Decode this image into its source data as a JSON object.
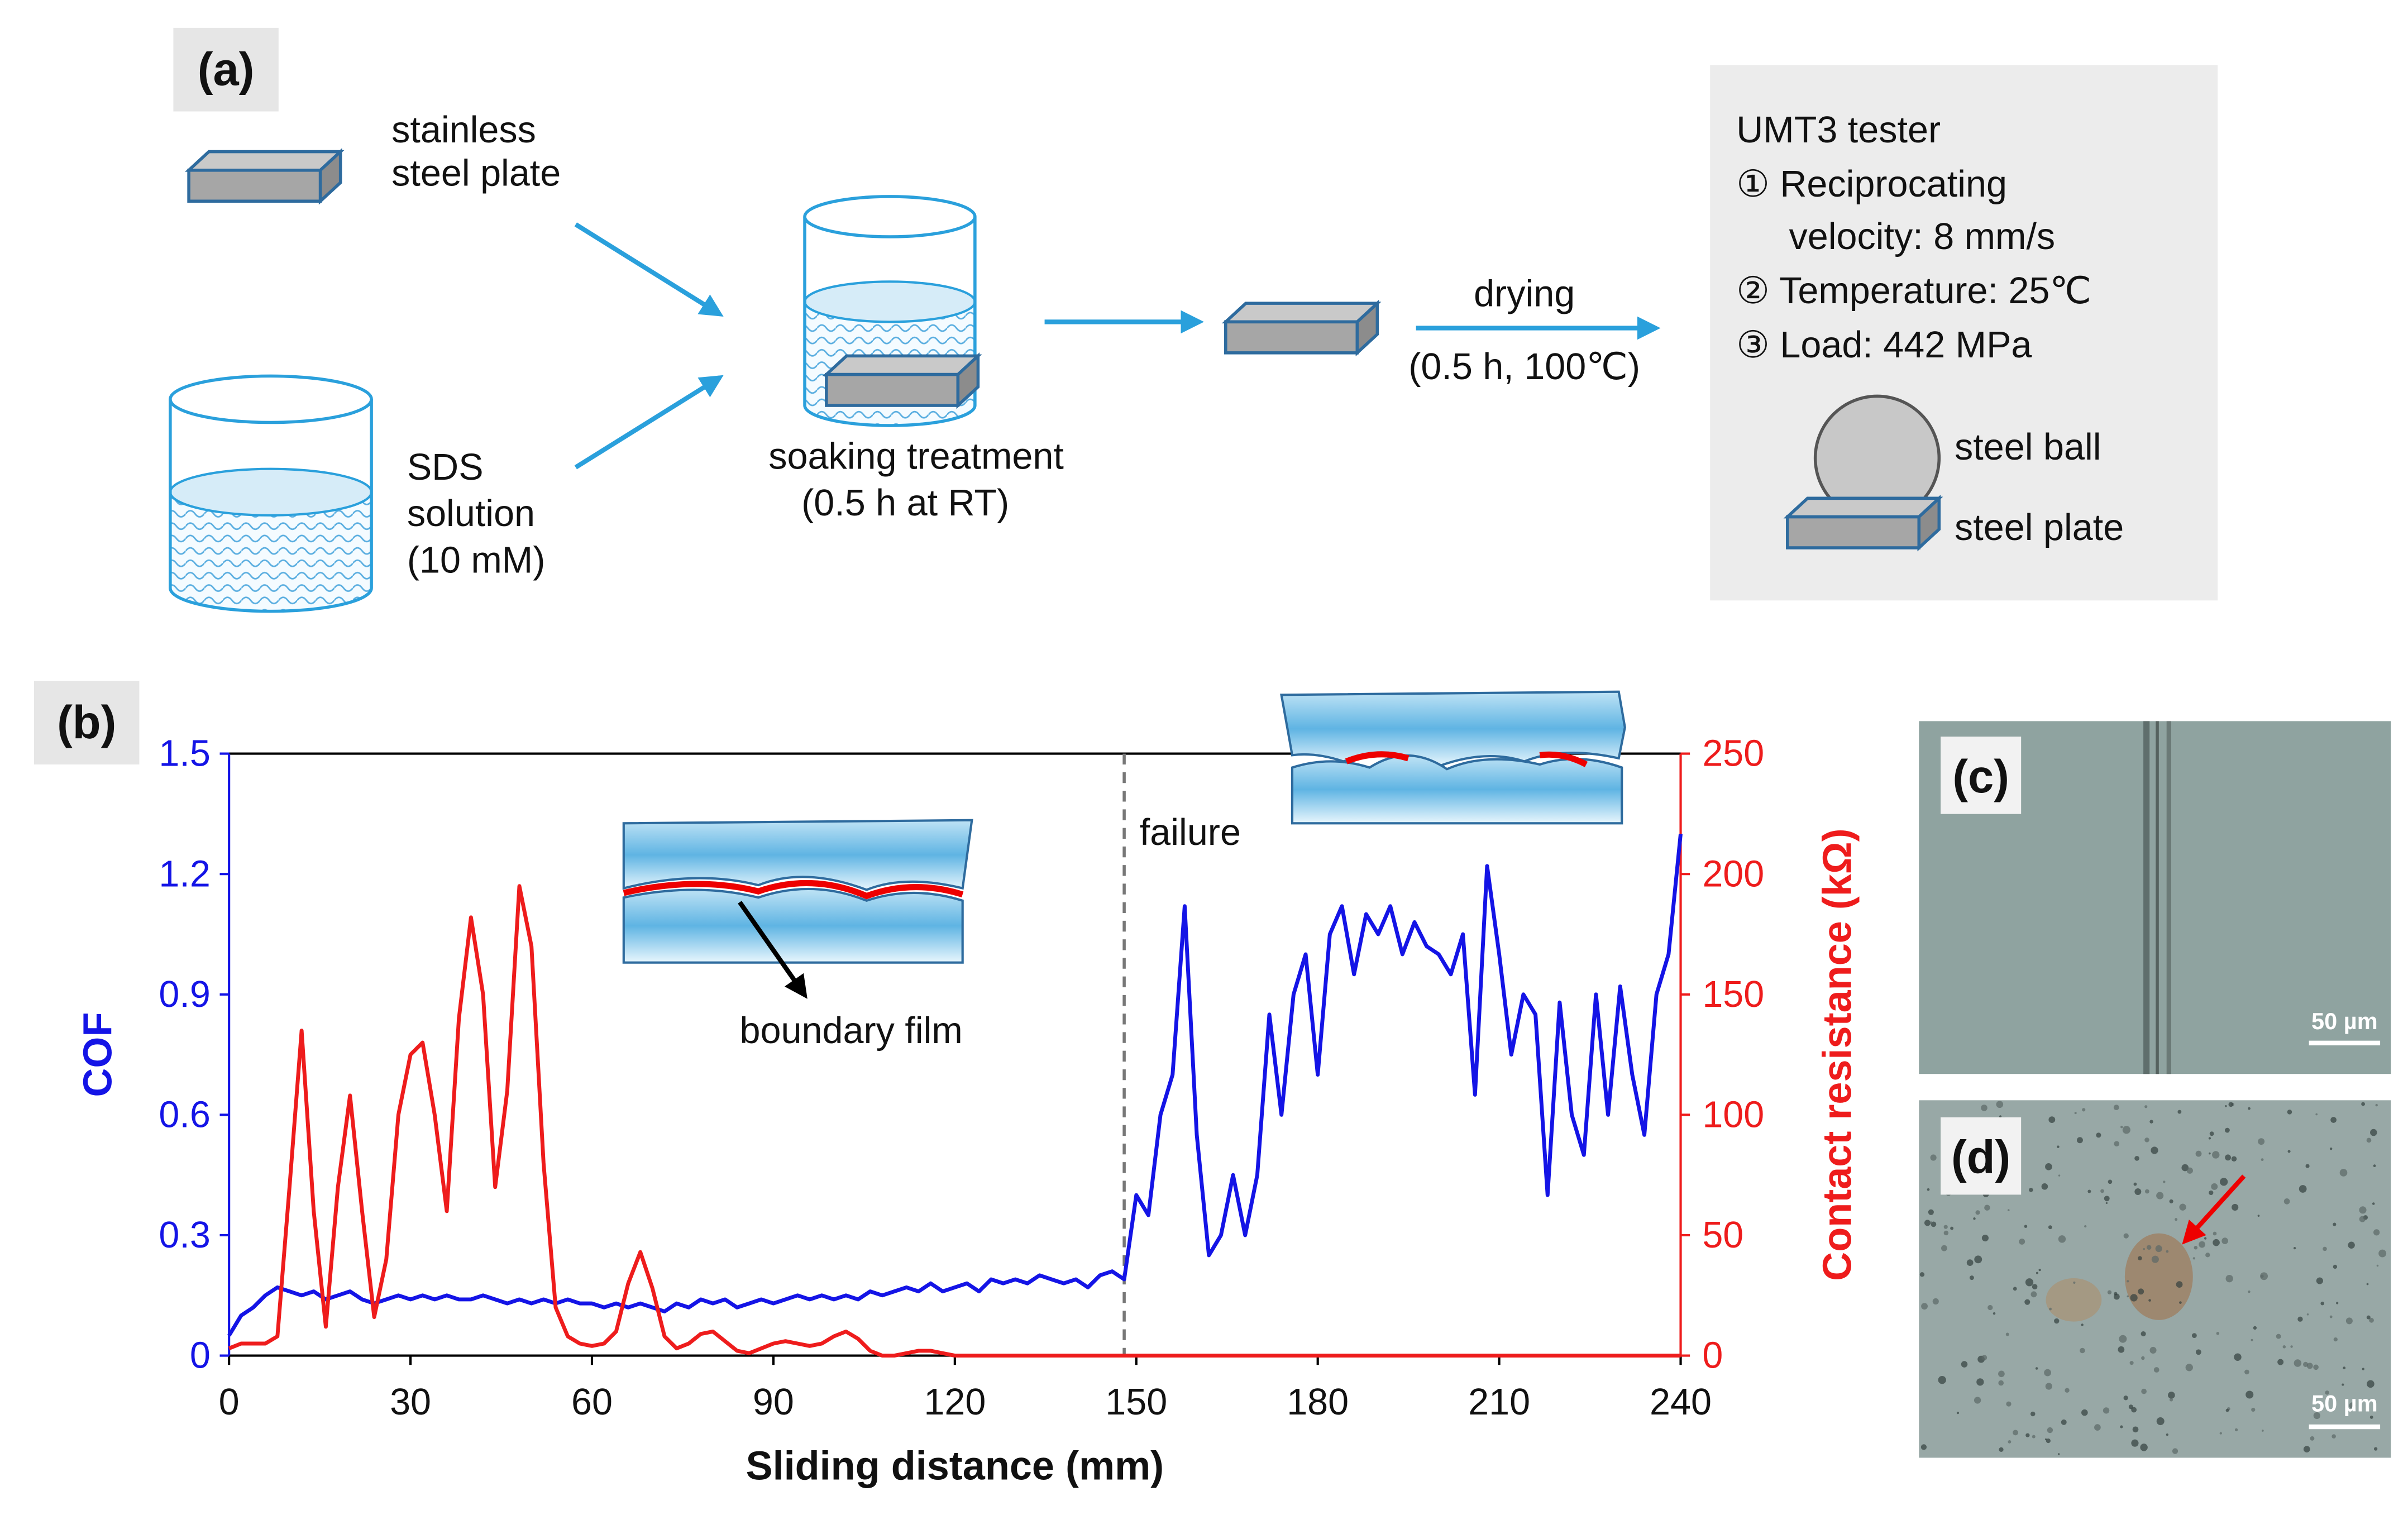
{
  "panel_a": {
    "label": "(a)",
    "plate_text": [
      "stainless",
      "steel plate"
    ],
    "solution_text": [
      "SDS",
      "solution",
      "(10 mM)"
    ],
    "soak_text": [
      "soaking treatment",
      "(0.5 h at RT)"
    ],
    "drying_text": [
      "drying",
      "(0.5 h, 100℃)"
    ],
    "tester_text": [
      "UMT3 tester",
      "① Reciprocating",
      "velocity: 8 mm/s",
      "② Temperature: 25℃",
      "③ Load: 442 MPa"
    ],
    "ball_label": "steel ball",
    "steel_plate_label": "steel plate"
  },
  "panel_b_label": "(b)",
  "inset_label": "boundary film",
  "panel_c": {
    "label": "(c)",
    "scale": "50 µm"
  },
  "panel_d": {
    "label": "(d)",
    "scale": "50 µm"
  },
  "chart_data": {
    "type": "line",
    "x_label": "Sliding distance (mm)",
    "y_label": "COF",
    "y2_label": "Contact resistance (kΩ)",
    "annotation": {
      "text": "failure",
      "x": 148
    },
    "x": [
      0,
      2,
      4,
      6,
      8,
      10,
      12,
      14,
      16,
      18,
      20,
      22,
      24,
      26,
      28,
      30,
      32,
      34,
      36,
      38,
      40,
      42,
      44,
      46,
      48,
      50,
      52,
      54,
      56,
      58,
      60,
      62,
      64,
      66,
      68,
      70,
      72,
      74,
      76,
      78,
      80,
      82,
      84,
      86,
      88,
      90,
      92,
      94,
      96,
      98,
      100,
      102,
      104,
      106,
      108,
      110,
      112,
      114,
      116,
      118,
      120,
      122,
      124,
      126,
      128,
      130,
      132,
      134,
      136,
      138,
      140,
      142,
      144,
      146,
      148,
      150,
      152,
      154,
      156,
      158,
      160,
      162,
      164,
      166,
      168,
      170,
      172,
      174,
      176,
      178,
      180,
      182,
      184,
      186,
      188,
      190,
      192,
      194,
      196,
      198,
      200,
      202,
      204,
      206,
      208,
      210,
      212,
      214,
      216,
      218,
      220,
      222,
      224,
      226,
      228,
      230,
      232,
      234,
      236,
      238,
      240
    ],
    "series": [
      {
        "name": "COF",
        "color": "#1414e6",
        "axis": "y",
        "values": [
          0.05,
          0.1,
          0.12,
          0.15,
          0.17,
          0.16,
          0.15,
          0.16,
          0.14,
          0.15,
          0.16,
          0.14,
          0.13,
          0.14,
          0.15,
          0.14,
          0.15,
          0.14,
          0.15,
          0.14,
          0.14,
          0.15,
          0.14,
          0.13,
          0.14,
          0.13,
          0.14,
          0.13,
          0.14,
          0.13,
          0.13,
          0.12,
          0.13,
          0.12,
          0.13,
          0.12,
          0.11,
          0.13,
          0.12,
          0.14,
          0.13,
          0.14,
          0.12,
          0.13,
          0.14,
          0.13,
          0.14,
          0.15,
          0.14,
          0.15,
          0.14,
          0.15,
          0.14,
          0.16,
          0.15,
          0.16,
          0.17,
          0.16,
          0.18,
          0.16,
          0.17,
          0.18,
          0.16,
          0.19,
          0.18,
          0.19,
          0.18,
          0.2,
          0.19,
          0.18,
          0.19,
          0.17,
          0.2,
          0.21,
          0.19,
          0.4,
          0.35,
          0.6,
          0.7,
          1.12,
          0.55,
          0.25,
          0.3,
          0.45,
          0.3,
          0.45,
          0.85,
          0.6,
          0.9,
          1.0,
          0.7,
          1.05,
          1.12,
          0.95,
          1.1,
          1.05,
          1.12,
          1.0,
          1.08,
          1.02,
          1.0,
          0.95,
          1.05,
          0.65,
          1.22,
          1.0,
          0.75,
          0.9,
          0.85,
          0.4,
          0.88,
          0.6,
          0.5,
          0.9,
          0.6,
          0.92,
          0.7,
          0.55,
          0.9,
          1.0,
          1.3
        ]
      },
      {
        "name": "Contact resistance",
        "color": "#ee1c1c",
        "axis": "y2",
        "values": [
          3,
          5,
          5,
          5,
          8,
          70,
          135,
          60,
          12,
          70,
          108,
          60,
          16,
          40,
          100,
          125,
          130,
          100,
          60,
          140,
          182,
          150,
          70,
          110,
          195,
          170,
          80,
          20,
          8,
          5,
          4,
          5,
          10,
          30,
          43,
          28,
          8,
          3,
          5,
          9,
          10,
          6,
          2,
          1,
          3,
          5,
          6,
          5,
          4,
          5,
          8,
          10,
          7,
          2,
          0,
          0,
          1,
          2,
          2,
          1,
          0,
          0,
          0,
          0,
          0,
          0,
          0,
          0,
          0,
          0,
          0,
          0,
          0,
          0,
          0,
          0,
          0,
          0,
          0,
          0,
          0,
          0,
          0,
          0,
          0,
          0,
          0,
          0,
          0,
          0,
          0,
          0,
          0,
          0,
          0,
          0,
          0,
          0,
          0,
          0,
          0,
          0,
          0,
          0,
          0,
          0,
          0,
          0,
          0,
          0,
          0,
          0,
          0,
          0,
          0,
          0,
          0,
          0,
          0,
          0,
          0
        ]
      }
    ],
    "xlim": [
      0,
      240
    ],
    "xticks": [
      0,
      30,
      60,
      90,
      120,
      150,
      180,
      210,
      240
    ],
    "ylim": [
      0,
      1.5
    ],
    "yticks": [
      0,
      0.3,
      0.6,
      0.9,
      1.2,
      1.5
    ],
    "y2lim": [
      0,
      250
    ],
    "y2ticks": [
      0,
      50,
      100,
      150,
      200,
      250
    ],
    "grid": false
  }
}
